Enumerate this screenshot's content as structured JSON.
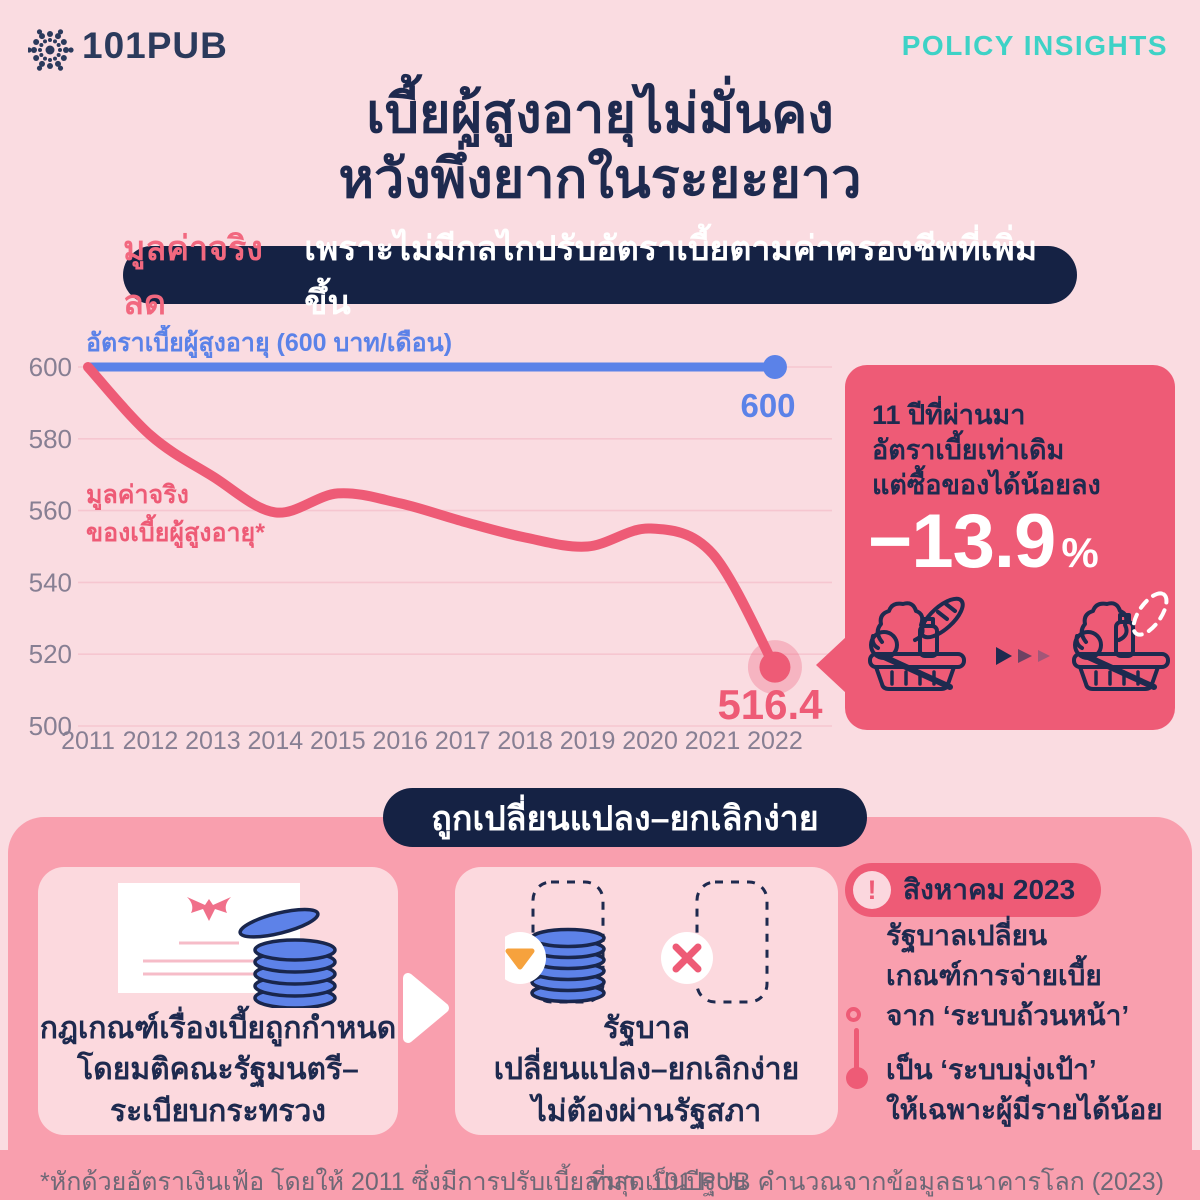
{
  "colors": {
    "background": "#fadce1",
    "navy": "#1e2a4f",
    "rose": "#ee5b76",
    "blue": "#5b82e8",
    "teal": "#3ed2c6",
    "container_pink": "#f99fae",
    "card_pink": "#fcd9de",
    "orange": "#f6a23d"
  },
  "header": {
    "logo_text": "101PUB",
    "logo_mark_icon": "dandelion-dots-icon",
    "brand": "POLICY INSIGHTS"
  },
  "title": {
    "line1": "เบี้ยผู้สูงอายุไม่มั่นคง",
    "line2": "หวังพึ่งยากในระยะยาว"
  },
  "banner1": {
    "highlight": "มูลค่าจริงลด",
    "rest": "เพราะไม่มีกลไกปรับอัตราเบี้ยตามค่าครองชีพที่เพิ่มขึ้น"
  },
  "chart_data": {
    "type": "line",
    "x": [
      2011,
      2012,
      2013,
      2014,
      2015,
      2016,
      2017,
      2018,
      2019,
      2020,
      2021,
      2022
    ],
    "ylim": [
      500,
      600
    ],
    "yticks": [
      600,
      580,
      560,
      540,
      520,
      500
    ],
    "grid": true,
    "legend_position": "inline-labels",
    "series": [
      {
        "name": "อัตราเบี้ยผู้สูงอายุ (600 บาท/เดือน)",
        "label_lines": [
          "อัตราเบี้ยผู้สูงอายุ (600 บาท/เดือน)"
        ],
        "color": "#5b82e8",
        "values": [
          600,
          600,
          600,
          600,
          600,
          600,
          600,
          600,
          600,
          600,
          600,
          600
        ],
        "end_label": "600",
        "end_halo": false
      },
      {
        "name": "มูลค่าจริงของเบี้ยผู้สูงอายุ*",
        "label_lines": [
          "มูลค่าจริง",
          "ของเบี้ยผู้สูงอายุ*"
        ],
        "color": "#ee5b76",
        "values": [
          600,
          581,
          569.5,
          559.5,
          564.8,
          562,
          557,
          552.5,
          550,
          555,
          548,
          516.4
        ],
        "end_label": "516.4",
        "end_halo": true
      }
    ]
  },
  "insight_panel": {
    "lines": [
      "11 ปีที่ผ่านมา",
      "อัตราเบี้ยเท่าเดิม",
      "แต่ซื้อของได้น้อยลง"
    ],
    "big_value": "−13.9",
    "percent_sign": "%",
    "icons": [
      "basket-full-icon",
      "forward-triangles-icon",
      "basket-missing-item-icon"
    ]
  },
  "section2": {
    "banner": "ถูกเปลี่ยนแปลง–ยกเลิกง่าย",
    "card1": {
      "icons": [
        "official-document-garuda-icon",
        "coin-stack-icon"
      ],
      "lines": [
        "กฎเกณฑ์เรื่องเบี้ยถูกกำหนด",
        "โดยมติคณะรัฐมนตรี–",
        "ระเบียบกระทรวง"
      ]
    },
    "card2": {
      "icons": [
        "coin-stack-decrease-icon",
        "cancel-x-icon"
      ],
      "lines": [
        "รัฐบาล",
        "เปลี่ยนแปลง–ยกเลิกง่าย",
        "ไม่ต้องผ่านรัฐสภา"
      ]
    },
    "timeline": {
      "badge_icon": "!",
      "badge": "สิงหาคม 2023",
      "line1": "รัฐบาลเปลี่ยน",
      "line2": "เกณฑ์การจ่ายเบี้ย",
      "line3": "จาก ‘ระบบถ้วนหน้า’",
      "line4": "เป็น ‘ระบบมุ่งเป้า’",
      "line5": "ให้เฉพาะผู้มีรายได้น้อย"
    }
  },
  "footer": {
    "note": "*หักด้วยอัตราเงินเฟ้อ โดยให้ 2011 ซึ่งมีการปรับเบี้ยล่าสุดเป็นปีฐาน",
    "source": "ที่มา: 101 PUB คำนวณจากข้อมูลธนาคารโลก (2023)"
  }
}
